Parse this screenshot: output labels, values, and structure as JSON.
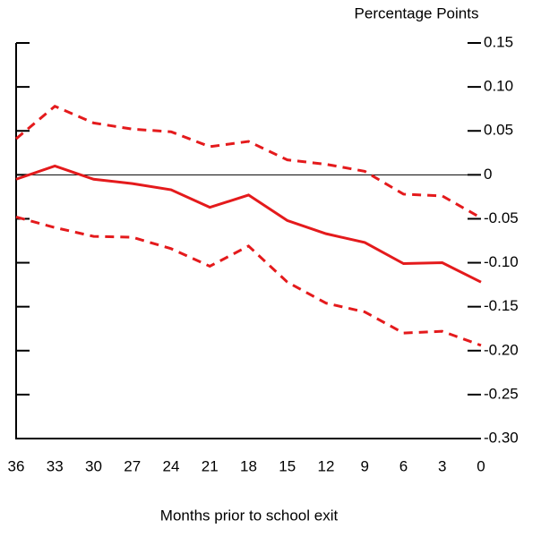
{
  "chart_data": {
    "type": "line",
    "y_label": "Percentage Points",
    "x_label": "Months prior to school exit",
    "x": [
      36,
      33,
      30,
      27,
      24,
      21,
      18,
      15,
      12,
      9,
      6,
      3,
      0
    ],
    "xlim": [
      36,
      0
    ],
    "xticks": [
      36,
      33,
      30,
      27,
      24,
      21,
      18,
      15,
      12,
      9,
      6,
      3,
      0
    ],
    "ylim": [
      -0.3,
      0.15
    ],
    "yticks": [
      0.15,
      {
        "value": 0.1,
        "label": "0.10"
      },
      0.05,
      0,
      -0.05,
      {
        "value": -0.1,
        "label": "-0.10"
      },
      -0.15,
      {
        "value": -0.2,
        "label": "-0.20"
      },
      -0.25,
      {
        "value": -0.3,
        "label": "-0.30"
      }
    ],
    "zero_line": true,
    "series": [
      {
        "color": "#e41a1c",
        "style": "solid",
        "values": [
          -0.005,
          0.01,
          -0.005,
          -0.01,
          -0.017,
          -0.037,
          -0.023,
          -0.052,
          -0.067,
          -0.077,
          -0.101,
          -0.1,
          -0.122
        ]
      },
      {
        "color": "#e41a1c",
        "style": "dashed",
        "values": [
          0.041,
          0.078,
          0.059,
          0.052,
          0.049,
          0.032,
          0.038,
          0.017,
          0.012,
          0.004,
          -0.022,
          -0.024,
          -0.049
        ]
      },
      {
        "color": "#e41a1c",
        "style": "dashed",
        "values": [
          -0.048,
          -0.06,
          -0.07,
          -0.071,
          -0.084,
          -0.104,
          -0.081,
          -0.122,
          -0.146,
          -0.156,
          -0.18,
          -0.178,
          -0.194
        ]
      }
    ]
  }
}
